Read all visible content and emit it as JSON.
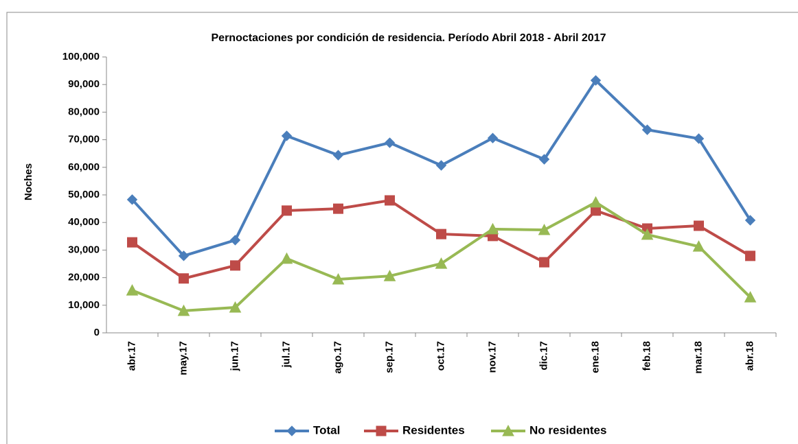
{
  "chart_data": {
    "type": "line",
    "title": "Pernoctaciones por condición de residencia. Período Abril 2018 - Abril 2017",
    "y_label": "Noches",
    "categories": [
      "abr.17",
      "may.17",
      "jun.17",
      "jul.17",
      "ago.17",
      "sep.17",
      "oct.17",
      "nov.17",
      "dic.17",
      "ene.18",
      "feb.18",
      "mar.18",
      "abr.18"
    ],
    "series": [
      {
        "name": "Total",
        "color": "#4a7ebb",
        "marker": "diamond",
        "values": [
          48300,
          27900,
          33600,
          71400,
          64400,
          68900,
          60700,
          70600,
          62900,
          91500,
          73600,
          70400,
          40800
        ]
      },
      {
        "name": "Residentes",
        "color": "#be4b48",
        "marker": "square",
        "values": [
          32800,
          19700,
          24400,
          44300,
          45000,
          48000,
          35800,
          35100,
          25600,
          44300,
          37800,
          38800,
          27900
        ]
      },
      {
        "name": "No residentes",
        "color": "#98b954",
        "marker": "triangle",
        "values": [
          15400,
          8000,
          9200,
          26900,
          19400,
          20600,
          25100,
          37600,
          37300,
          47300,
          35600,
          31300,
          12900
        ]
      }
    ],
    "ylim": [
      0,
      100000
    ],
    "yticks": [
      0,
      {
        "value": 10000,
        "label": "10,000"
      },
      {
        "value": 20000,
        "label": "20,000"
      },
      {
        "value": 30000,
        "label": "30,000"
      },
      {
        "value": 40000,
        "label": "40,000"
      },
      {
        "value": 50000,
        "label": "50,000"
      },
      {
        "value": 60000,
        "label": "60,000"
      },
      {
        "value": 70000,
        "label": "70,000"
      },
      {
        "value": 80000,
        "label": "80,000"
      },
      {
        "value": 90000,
        "label": "90,000"
      },
      {
        "value": 100000,
        "label": "100,000"
      }
    ],
    "legend": "bottom"
  }
}
